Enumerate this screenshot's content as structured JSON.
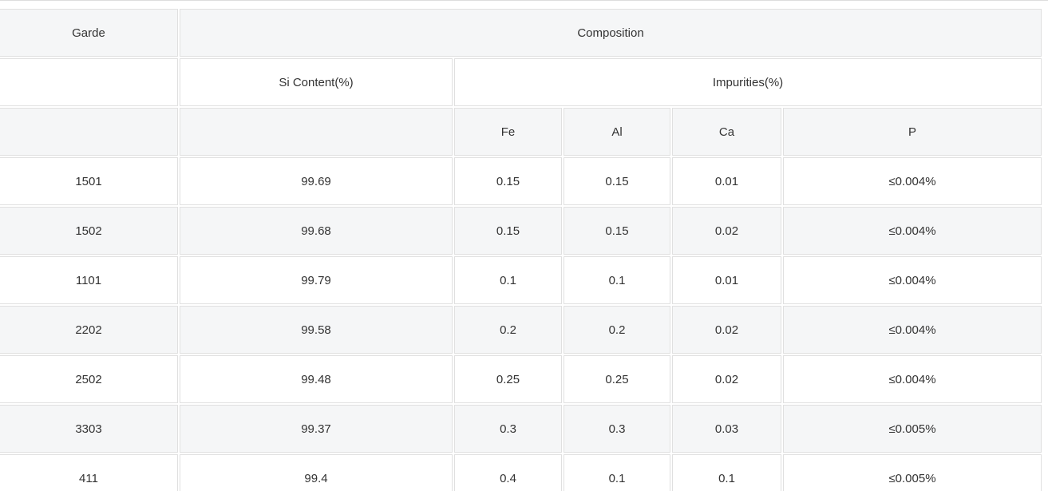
{
  "header": {
    "grade": "Garde",
    "composition": "Composition",
    "si_content": "Si Content(%)",
    "impurities": "Impurities(%)",
    "fe": "Fe",
    "al": "Al",
    "ca": "Ca",
    "p": "P"
  },
  "table": {
    "rows": [
      [
        "1501",
        "99.69",
        "0.15",
        "0.15",
        "0.01",
        "≤0.004%"
      ],
      [
        "1502",
        "99.68",
        "0.15",
        "0.15",
        "0.02",
        "≤0.004%"
      ],
      [
        "1101",
        "99.79",
        "0.1",
        "0.1",
        "0.01",
        "≤0.004%"
      ],
      [
        "2202",
        "99.58",
        "0.2",
        "0.2",
        "0.02",
        "≤0.004%"
      ],
      [
        "2502",
        "99.48",
        "0.25",
        "0.25",
        "0.02",
        "≤0.004%"
      ],
      [
        "3303",
        "99.37",
        "0.3",
        "0.3",
        "0.03",
        "≤0.005%"
      ],
      [
        "411",
        "99.4",
        "0.4",
        "0.1",
        "0.1",
        "≤0.005%"
      ]
    ]
  }
}
